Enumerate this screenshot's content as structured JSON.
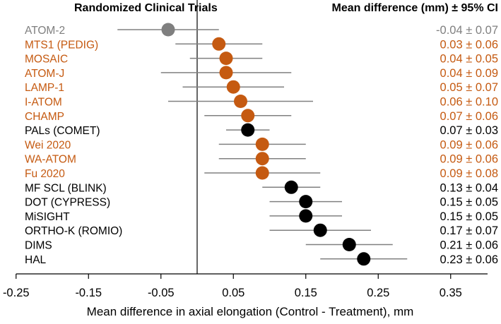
{
  "chart_data": {
    "type": "scatter",
    "subtype": "forest-plot",
    "title_left": "Randomized Clinical Trials",
    "title_right": "Mean difference (mm) ± 95% CI",
    "xlabel": "Mean difference in axial elongation (Control - Treatment), mm",
    "xlim": [
      -0.25,
      0.4
    ],
    "xticks": [
      -0.25,
      -0.15,
      -0.05,
      0.05,
      0.15,
      0.25,
      0.35
    ],
    "xtick_labels": [
      "-0.25",
      "-0.15",
      "-0.05",
      "0.05",
      "0.15",
      "0.25",
      "0.35"
    ],
    "reference_line_x": 0,
    "grid": false,
    "colors": {
      "gray": "#7f7f7f",
      "orange": "#c55a11",
      "black": "#000000",
      "errorbar": "#808080"
    },
    "studies": [
      {
        "name": "ATOM-2",
        "mean": -0.04,
        "ci": 0.07,
        "label": "-0.04 ± 0.07",
        "group": "gray"
      },
      {
        "name": "MTS1 (PEDIG)",
        "mean": 0.03,
        "ci": 0.06,
        "label": "0.03 ± 0.06",
        "group": "orange"
      },
      {
        "name": "MOSAIC",
        "mean": 0.04,
        "ci": 0.05,
        "label": "0.04 ± 0.05",
        "group": "orange"
      },
      {
        "name": "ATOM-J",
        "mean": 0.04,
        "ci": 0.09,
        "label": "0.04 ± 0.09",
        "group": "orange"
      },
      {
        "name": "LAMP-1",
        "mean": 0.05,
        "ci": 0.07,
        "label": "0.05 ± 0.07",
        "group": "orange"
      },
      {
        "name": "I-ATOM",
        "mean": 0.06,
        "ci": 0.1,
        "label": "0.06 ± 0.10",
        "group": "orange"
      },
      {
        "name": "CHAMP",
        "mean": 0.07,
        "ci": 0.06,
        "label": "0.07 ± 0.06",
        "group": "orange"
      },
      {
        "name": "PALs (COMET)",
        "mean": 0.07,
        "ci": 0.03,
        "label": "0.07 ± 0.03",
        "group": "black"
      },
      {
        "name": "Wei 2020",
        "mean": 0.09,
        "ci": 0.06,
        "label": "0.09 ± 0.06",
        "group": "orange"
      },
      {
        "name": "WA-ATOM",
        "mean": 0.09,
        "ci": 0.06,
        "label": "0.09 ± 0.06",
        "group": "orange"
      },
      {
        "name": "Fu 2020",
        "mean": 0.09,
        "ci": 0.08,
        "label": "0.09 ± 0.08",
        "group": "orange"
      },
      {
        "name": "MF SCL (BLINK)",
        "mean": 0.13,
        "ci": 0.04,
        "label": "0.13 ± 0.04",
        "group": "black"
      },
      {
        "name": "DOT (CYPRESS)",
        "mean": 0.15,
        "ci": 0.05,
        "label": "0.15 ± 0.05",
        "group": "black"
      },
      {
        "name": "MiSIGHT",
        "mean": 0.15,
        "ci": 0.05,
        "label": "0.15 ± 0.05",
        "group": "black"
      },
      {
        "name": "ORTHO-K (ROMIO)",
        "mean": 0.17,
        "ci": 0.07,
        "label": "0.17 ± 0.07",
        "group": "black"
      },
      {
        "name": "DIMS",
        "mean": 0.21,
        "ci": 0.06,
        "label": "0.21 ± 0.06",
        "group": "black"
      },
      {
        "name": "HAL",
        "mean": 0.23,
        "ci": 0.06,
        "label": "0.23 ± 0.06",
        "group": "black"
      }
    ]
  }
}
